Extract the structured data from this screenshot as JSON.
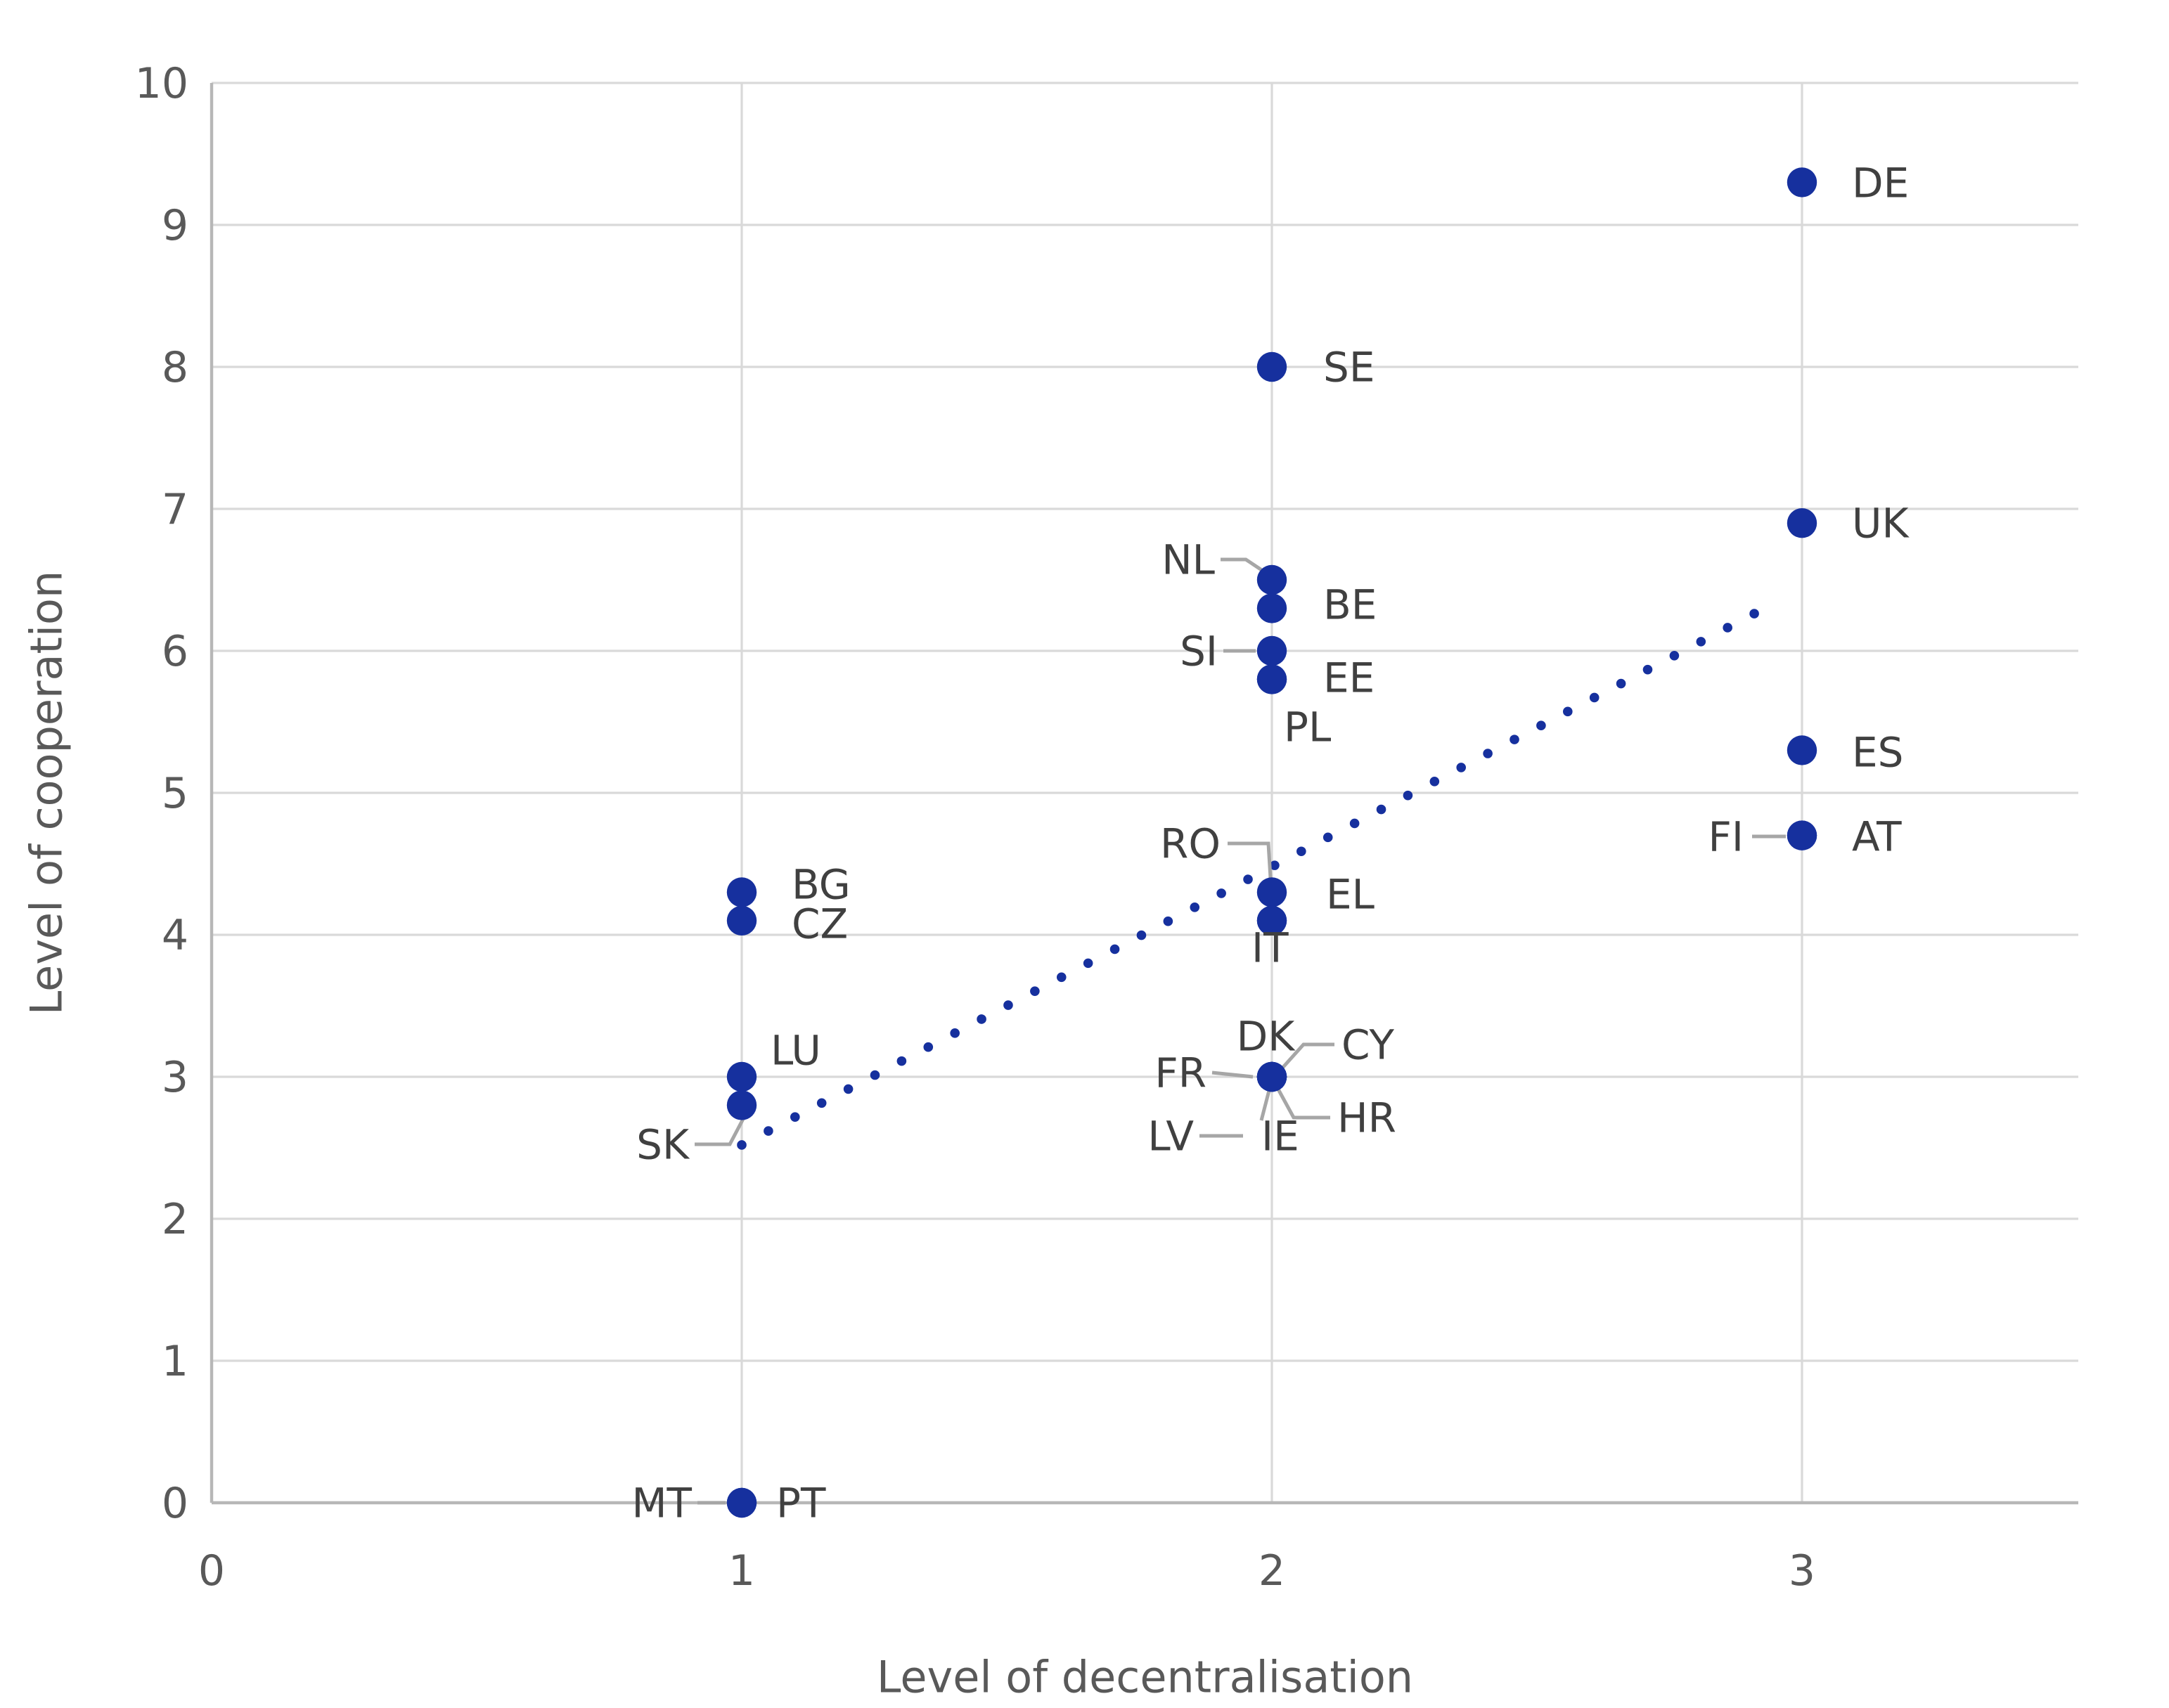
{
  "chart_data": {
    "type": "scatter",
    "title": "",
    "xlabel": "Level of decentralisation",
    "ylabel": "Level of cooperation",
    "xlim": [
      0,
      3.5
    ],
    "ylim": [
      0,
      10
    ],
    "x_ticks": [
      0,
      1,
      2,
      3
    ],
    "y_ticks": [
      0,
      1,
      2,
      3,
      4,
      5,
      6,
      7,
      8,
      9,
      10
    ],
    "grid": true,
    "legend_position": "none",
    "colors": {
      "point": "#16309e",
      "trendline": "#16309e",
      "gridline": "#d9d9d9",
      "axis_line": "#b7b7b7",
      "tick_label": "#595959",
      "axis_title": "#595959",
      "data_label": "#404040",
      "leader_line": "#a6a6a6",
      "background": "#ffffff"
    },
    "points": [
      {
        "label": "DE",
        "x": 3,
        "y": 9.3
      },
      {
        "label": "SE",
        "x": 2,
        "y": 8.0
      },
      {
        "label": "UK",
        "x": 3,
        "y": 6.9
      },
      {
        "label": "NL",
        "x": 2,
        "y": 6.5
      },
      {
        "label": "BE",
        "x": 2,
        "y": 6.3
      },
      {
        "label": "SI",
        "x": 2,
        "y": 6.0
      },
      {
        "label": "EE",
        "x": 2,
        "y": 5.8
      },
      {
        "label": "PL",
        "x": 2,
        "y": 5.8
      },
      {
        "label": "ES",
        "x": 3,
        "y": 5.3
      },
      {
        "label": "AT",
        "x": 3,
        "y": 4.7
      },
      {
        "label": "FI",
        "x": 3,
        "y": 4.7
      },
      {
        "label": "BG",
        "x": 1,
        "y": 4.3
      },
      {
        "label": "EL",
        "x": 2,
        "y": 4.3
      },
      {
        "label": "CZ",
        "x": 1,
        "y": 4.1
      },
      {
        "label": "RO",
        "x": 2,
        "y": 4.1
      },
      {
        "label": "IT",
        "x": 2,
        "y": 4.1
      },
      {
        "label": "LU",
        "x": 1,
        "y": 3.0
      },
      {
        "label": "DK",
        "x": 2,
        "y": 3.0
      },
      {
        "label": "CY",
        "x": 2,
        "y": 3.0
      },
      {
        "label": "FR",
        "x": 2,
        "y": 3.0
      },
      {
        "label": "HR",
        "x": 2,
        "y": 3.0
      },
      {
        "label": "LV",
        "x": 2,
        "y": 3.0
      },
      {
        "label": "IE",
        "x": 2,
        "y": 3.0
      },
      {
        "label": "SK",
        "x": 1,
        "y": 2.8
      },
      {
        "label": "MT",
        "x": 1,
        "y": 0
      },
      {
        "label": "PT",
        "x": 1,
        "y": 0
      }
    ],
    "trendline": {
      "style": "dotted",
      "x1": 1.0,
      "y1": 2.52,
      "x2": 2.96,
      "y2": 6.36
    }
  }
}
